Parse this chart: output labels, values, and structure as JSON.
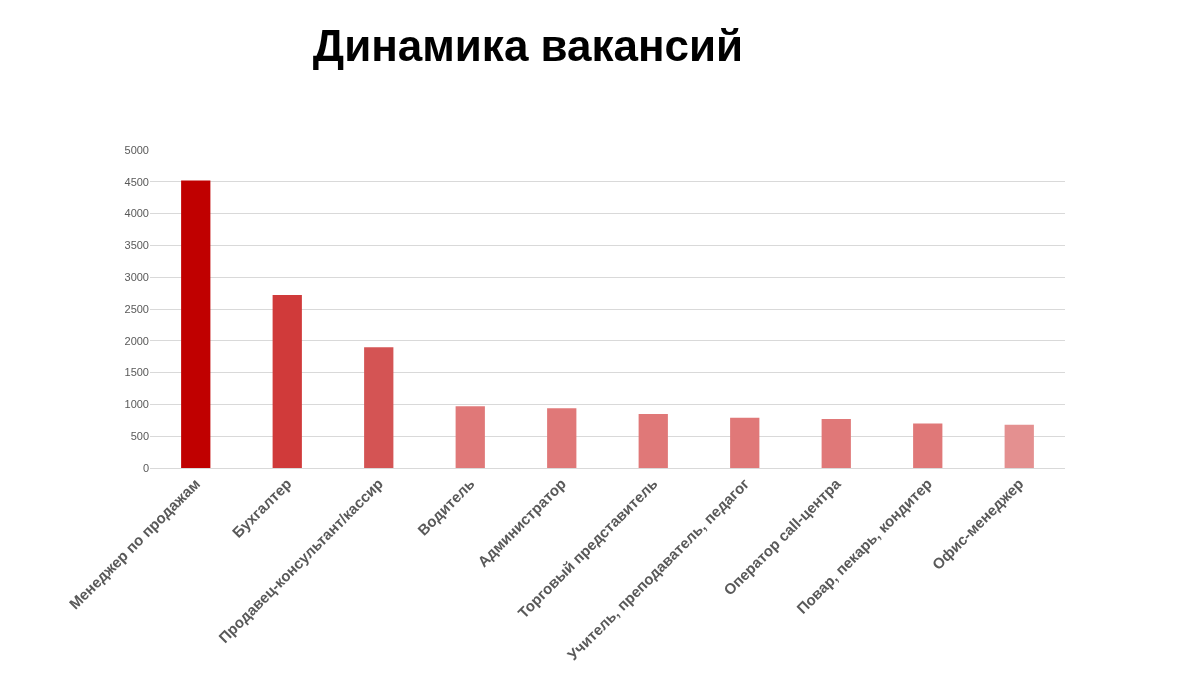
{
  "chart_data": {
    "type": "bar",
    "title": "Динамика вакансий",
    "categories": [
      "Менеджер по продажам",
      "Бухгалтер",
      "Продавец-консультант/кассир",
      "Водитель",
      "Администратор",
      "Торговый представитель",
      "Учитель, преподаватель, педагог",
      "Оператор call-центра",
      "Повар, пекарь, кондитер",
      "Офис-менеджер"
    ],
    "values": [
      4520,
      2720,
      1900,
      970,
      940,
      850,
      790,
      770,
      700,
      680
    ],
    "colors": [
      "#c00000",
      "#d03a3a",
      "#d45454",
      "#e07878",
      "#e07878",
      "#e07878",
      "#e07878",
      "#e07878",
      "#e07878",
      "#e49090"
    ],
    "ylim": [
      0,
      5000
    ],
    "yticks": [
      0,
      500,
      1000,
      1500,
      2000,
      2500,
      3000,
      3500,
      4000,
      4500,
      5000
    ],
    "grid": "y"
  }
}
